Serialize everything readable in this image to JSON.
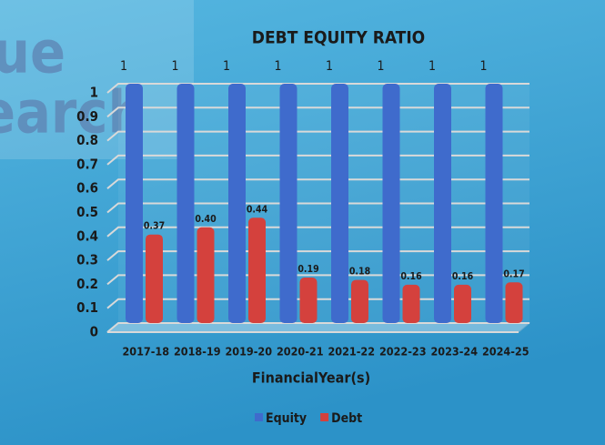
{
  "chart_data": {
    "type": "bar",
    "title": "DEBT EQUITY RATIO",
    "watermark": [
      "ue",
      "earch"
    ],
    "x_label": "FinancialYear(s)",
    "categories": [
      "2017-18",
      "2018-19",
      "2019-20",
      "2020-21",
      "2021-22",
      "2022-23",
      "2023-24",
      "2024-25"
    ],
    "series": [
      {
        "name": "Equity",
        "color": "#3f6bcc",
        "values": [
          1,
          1,
          1,
          1,
          1,
          1,
          1,
          1
        ]
      },
      {
        "name": "Debt",
        "color": "#d4413d",
        "values": [
          0.37,
          0.4,
          0.44,
          0.19,
          0.18,
          0.16,
          0.16,
          0.17
        ],
        "value_labels": [
          "0.37",
          "0.40",
          "0.44",
          "0.19",
          "0.18",
          "0.16",
          "0.16",
          "0.17"
        ]
      }
    ],
    "ylim": [
      0,
      1
    ],
    "yticks": [
      0,
      0.1,
      0.2,
      0.3,
      0.4,
      0.5,
      0.6,
      0.7,
      0.8,
      0.9,
      1
    ],
    "grid": true,
    "legend": "bottom"
  }
}
